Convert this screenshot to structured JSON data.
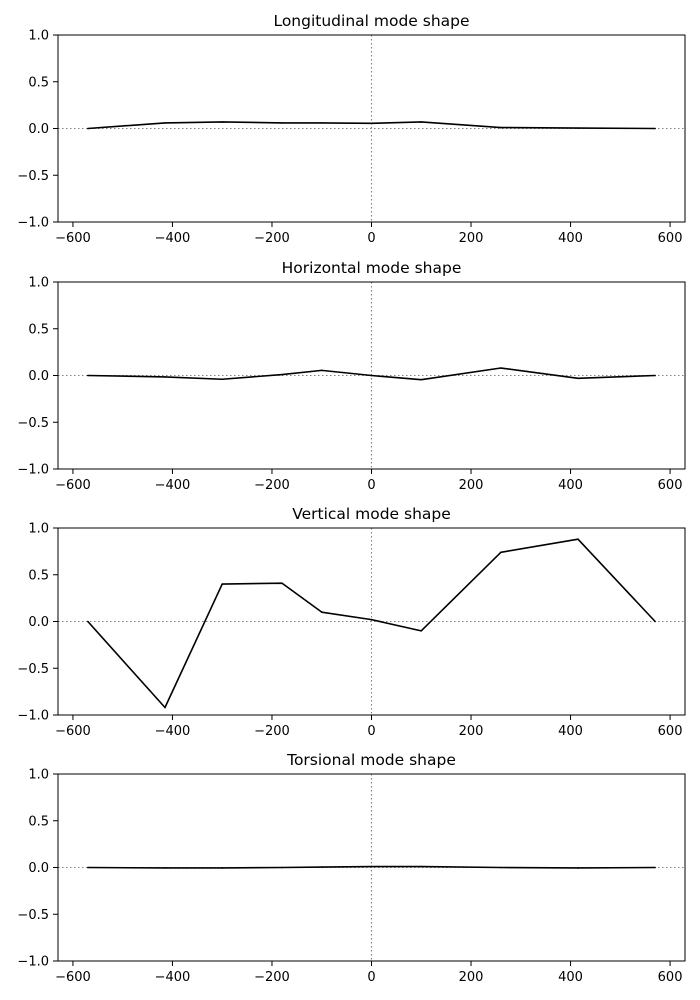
{
  "chart_data": [
    {
      "type": "line",
      "title": "Longitudinal mode shape",
      "xlabel": "",
      "ylabel": "",
      "xlim": [
        -630,
        630
      ],
      "ylim": [
        -1.0,
        1.0
      ],
      "xticks": [
        -600,
        -400,
        -200,
        0,
        200,
        400,
        600
      ],
      "xtick_labels": [
        "−600",
        "−400",
        "−200",
        "0",
        "200",
        "400",
        "600"
      ],
      "yticks": [
        1.0,
        0.5,
        0.0,
        -0.5,
        -1.0
      ],
      "ytick_labels": [
        "1.0",
        "0.5",
        "0.0",
        "−0.5",
        "−1.0"
      ],
      "reference_lines": {
        "horizontal_at": 0,
        "vertical_at": 0,
        "style": "dotted",
        "color": "#808080"
      },
      "grid": false,
      "series": [
        {
          "color": "#000000",
          "x": [
            -570,
            -415,
            -300,
            -180,
            -100,
            0,
            100,
            260,
            415,
            570
          ],
          "y": [
            0.0,
            0.06,
            0.07,
            0.06,
            0.06,
            0.055,
            0.07,
            0.01,
            0.005,
            0.0
          ]
        }
      ]
    },
    {
      "type": "line",
      "title": "Horizontal mode shape",
      "xlabel": "",
      "ylabel": "",
      "xlim": [
        -630,
        630
      ],
      "ylim": [
        -1.0,
        1.0
      ],
      "xticks": [
        -600,
        -400,
        -200,
        0,
        200,
        400,
        600
      ],
      "xtick_labels": [
        "−600",
        "−400",
        "−200",
        "0",
        "200",
        "400",
        "600"
      ],
      "yticks": [
        1.0,
        0.5,
        0.0,
        -0.5,
        -1.0
      ],
      "ytick_labels": [
        "1.0",
        "0.5",
        "0.0",
        "−0.5",
        "−1.0"
      ],
      "reference_lines": {
        "horizontal_at": 0,
        "vertical_at": 0,
        "style": "dotted",
        "color": "#808080"
      },
      "grid": false,
      "series": [
        {
          "color": "#000000",
          "x": [
            -570,
            -415,
            -300,
            -180,
            -100,
            0,
            100,
            260,
            415,
            570
          ],
          "y": [
            0.0,
            -0.015,
            -0.04,
            0.01,
            0.055,
            0.0,
            -0.045,
            0.08,
            -0.03,
            0.0
          ]
        }
      ]
    },
    {
      "type": "line",
      "title": "Vertical mode shape",
      "xlabel": "",
      "ylabel": "",
      "xlim": [
        -630,
        630
      ],
      "ylim": [
        -1.0,
        1.0
      ],
      "xticks": [
        -600,
        -400,
        -200,
        0,
        200,
        400,
        600
      ],
      "xtick_labels": [
        "−600",
        "−400",
        "−200",
        "0",
        "200",
        "400",
        "600"
      ],
      "yticks": [
        1.0,
        0.5,
        0.0,
        -0.5,
        -1.0
      ],
      "ytick_labels": [
        "1.0",
        "0.5",
        "0.0",
        "−0.5",
        "−1.0"
      ],
      "reference_lines": {
        "horizontal_at": 0,
        "vertical_at": 0,
        "style": "dotted",
        "color": "#808080"
      },
      "grid": false,
      "series": [
        {
          "color": "#000000",
          "x": [
            -570,
            -415,
            -300,
            -180,
            -100,
            0,
            100,
            260,
            415,
            570
          ],
          "y": [
            0.0,
            -0.92,
            0.4,
            0.41,
            0.1,
            0.02,
            -0.1,
            0.74,
            0.88,
            0.0
          ]
        }
      ]
    },
    {
      "type": "line",
      "title": "Torsional mode shape",
      "xlabel": "",
      "ylabel": "",
      "xlim": [
        -630,
        630
      ],
      "ylim": [
        -1.0,
        1.0
      ],
      "xticks": [
        -600,
        -400,
        -200,
        0,
        200,
        400,
        600
      ],
      "xtick_labels": [
        "−600",
        "−400",
        "−200",
        "0",
        "200",
        "400",
        "600"
      ],
      "yticks": [
        1.0,
        0.5,
        0.0,
        -0.5,
        -1.0
      ],
      "ytick_labels": [
        "1.0",
        "0.5",
        "0.0",
        "−0.5",
        "−1.0"
      ],
      "reference_lines": {
        "horizontal_at": 0,
        "vertical_at": 0,
        "style": "dotted",
        "color": "#808080"
      },
      "grid": false,
      "series": [
        {
          "color": "#000000",
          "x": [
            -570,
            -415,
            -300,
            -180,
            -100,
            0,
            100,
            260,
            415,
            570
          ],
          "y": [
            0.0,
            -0.005,
            -0.005,
            0.0,
            0.005,
            0.01,
            0.01,
            0.0,
            -0.005,
            0.0
          ]
        }
      ]
    }
  ]
}
